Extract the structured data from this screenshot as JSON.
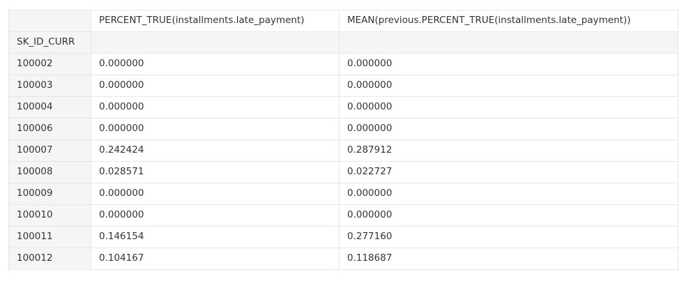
{
  "table": {
    "columns": [
      "PERCENT_TRUE(installments.late_payment)",
      "MEAN(previous.PERCENT_TRUE(installments.late_payment))"
    ],
    "index_name": "SK_ID_CURR",
    "rows": [
      {
        "index": "100002",
        "values": [
          "0.000000",
          "0.000000"
        ]
      },
      {
        "index": "100003",
        "values": [
          "0.000000",
          "0.000000"
        ]
      },
      {
        "index": "100004",
        "values": [
          "0.000000",
          "0.000000"
        ]
      },
      {
        "index": "100006",
        "values": [
          "0.000000",
          "0.000000"
        ]
      },
      {
        "index": "100007",
        "values": [
          "0.242424",
          "0.287912"
        ]
      },
      {
        "index": "100008",
        "values": [
          "0.028571",
          "0.022727"
        ]
      },
      {
        "index": "100009",
        "values": [
          "0.000000",
          "0.000000"
        ]
      },
      {
        "index": "100010",
        "values": [
          "0.000000",
          "0.000000"
        ]
      },
      {
        "index": "100011",
        "values": [
          "0.146154",
          "0.277160"
        ]
      },
      {
        "index": "100012",
        "values": [
          "0.104167",
          "0.118687"
        ]
      }
    ]
  }
}
